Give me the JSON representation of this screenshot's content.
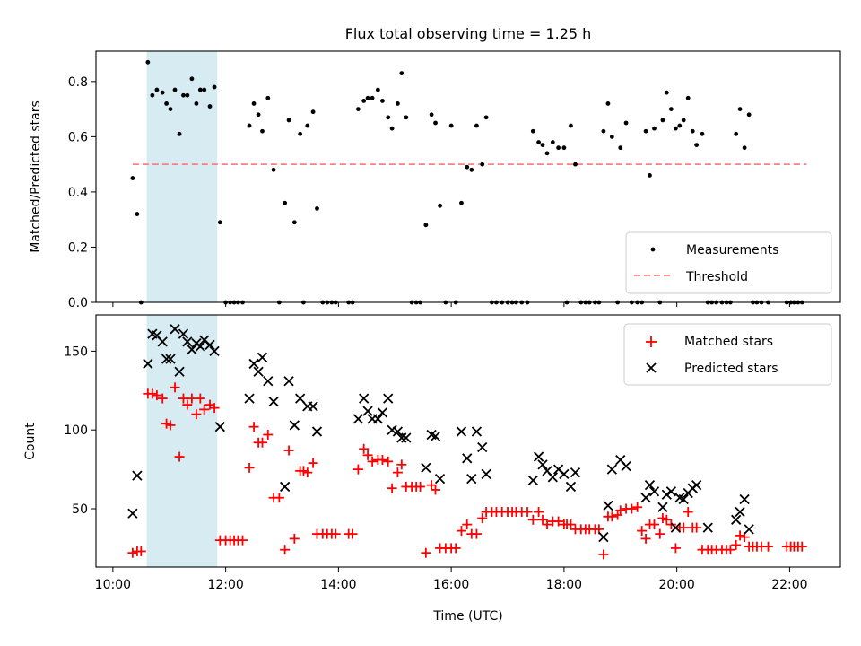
{
  "chart_data": {
    "title": "Flux total observing time = 1.25 h",
    "xlabel": "Time (UTC)",
    "x_unit": "hours UTC",
    "x_ticks": [
      10,
      12,
      14,
      16,
      18,
      20,
      22
    ],
    "x_tick_labels": [
      "10:00",
      "12:00",
      "14:00",
      "16:00",
      "18:00",
      "20:00",
      "22:00"
    ],
    "highlight": {
      "x_start": 10.6,
      "x_end": 11.85,
      "color": "#add8e6"
    },
    "top": {
      "type": "scatter",
      "ylabel": "Matched/Predicted stars",
      "ylim": [
        0,
        0.91
      ],
      "y_ticks": [
        0,
        0.2,
        0.4,
        0.6,
        0.8
      ],
      "y_tick_labels": [
        "0.0",
        "0.2",
        "0.4",
        "0.6",
        "0.8"
      ],
      "threshold": {
        "value": 0.5,
        "x_start": 10.35,
        "x_end": 22.3,
        "color": "#ff7f7f"
      },
      "legend": {
        "position": "lower-right",
        "items": [
          "Measurements",
          "Threshold"
        ]
      },
      "measurements": [
        [
          10.35,
          0.45
        ],
        [
          10.43,
          0.32
        ],
        [
          10.5,
          0
        ],
        [
          10.62,
          0.87
        ],
        [
          10.7,
          0.75
        ],
        [
          10.78,
          0.77
        ],
        [
          10.88,
          0.76
        ],
        [
          10.95,
          0.72
        ],
        [
          11.02,
          0.7
        ],
        [
          11.1,
          0.77
        ],
        [
          11.18,
          0.61
        ],
        [
          11.25,
          0.75
        ],
        [
          11.32,
          0.75
        ],
        [
          11.4,
          0.81
        ],
        [
          11.48,
          0.72
        ],
        [
          11.55,
          0.77
        ],
        [
          11.62,
          0.77
        ],
        [
          11.72,
          0.71
        ],
        [
          11.8,
          0.78
        ],
        [
          11.9,
          0.29
        ],
        [
          12.0,
          0
        ],
        [
          12.08,
          0
        ],
        [
          12.15,
          0
        ],
        [
          12.22,
          0
        ],
        [
          12.3,
          0
        ],
        [
          12.42,
          0.64
        ],
        [
          12.5,
          0.72
        ],
        [
          12.58,
          0.68
        ],
        [
          12.65,
          0.62
        ],
        [
          12.75,
          0.74
        ],
        [
          12.85,
          0.48
        ],
        [
          12.95,
          0
        ],
        [
          13.05,
          0.36
        ],
        [
          13.12,
          0.66
        ],
        [
          13.22,
          0.29
        ],
        [
          13.32,
          0.61
        ],
        [
          13.38,
          0
        ],
        [
          13.45,
          0.64
        ],
        [
          13.55,
          0.69
        ],
        [
          13.62,
          0.34
        ],
        [
          13.72,
          0
        ],
        [
          13.8,
          0
        ],
        [
          13.88,
          0
        ],
        [
          13.95,
          0
        ],
        [
          14.18,
          0
        ],
        [
          14.25,
          0
        ],
        [
          14.35,
          0.7
        ],
        [
          14.45,
          0.73
        ],
        [
          14.52,
          0.74
        ],
        [
          14.6,
          0.74
        ],
        [
          14.7,
          0.77
        ],
        [
          14.78,
          0.73
        ],
        [
          14.88,
          0.67
        ],
        [
          14.95,
          0.63
        ],
        [
          15.05,
          0.72
        ],
        [
          15.12,
          0.83
        ],
        [
          15.2,
          0.67
        ],
        [
          15.3,
          0
        ],
        [
          15.38,
          0
        ],
        [
          15.45,
          0
        ],
        [
          15.55,
          0.28
        ],
        [
          15.65,
          0.68
        ],
        [
          15.72,
          0.65
        ],
        [
          15.8,
          0.35
        ],
        [
          15.9,
          0
        ],
        [
          16.0,
          0.64
        ],
        [
          16.08,
          0
        ],
        [
          16.18,
          0.36
        ],
        [
          16.28,
          0.49
        ],
        [
          16.36,
          0.48
        ],
        [
          16.45,
          0.64
        ],
        [
          16.55,
          0.5
        ],
        [
          16.62,
          0.67
        ],
        [
          16.72,
          0
        ],
        [
          16.8,
          0
        ],
        [
          16.9,
          0
        ],
        [
          17.0,
          0
        ],
        [
          17.08,
          0
        ],
        [
          17.15,
          0
        ],
        [
          17.25,
          0
        ],
        [
          17.35,
          0
        ],
        [
          17.45,
          0.62
        ],
        [
          17.55,
          0.58
        ],
        [
          17.62,
          0.57
        ],
        [
          17.7,
          0.54
        ],
        [
          17.8,
          0.58
        ],
        [
          17.9,
          0.56
        ],
        [
          18.0,
          0.56
        ],
        [
          18.05,
          0
        ],
        [
          18.12,
          0.64
        ],
        [
          18.2,
          0.5
        ],
        [
          18.3,
          0
        ],
        [
          18.38,
          0
        ],
        [
          18.45,
          0
        ],
        [
          18.55,
          0
        ],
        [
          18.62,
          0
        ],
        [
          18.7,
          0.62
        ],
        [
          18.78,
          0.72
        ],
        [
          18.85,
          0.6
        ],
        [
          18.95,
          0
        ],
        [
          19.0,
          0.56
        ],
        [
          19.1,
          0.65
        ],
        [
          19.2,
          0
        ],
        [
          19.3,
          0
        ],
        [
          19.38,
          0
        ],
        [
          19.45,
          0.62
        ],
        [
          19.52,
          0.46
        ],
        [
          19.6,
          0.63
        ],
        [
          19.7,
          0
        ],
        [
          19.75,
          0.66
        ],
        [
          19.82,
          0.76
        ],
        [
          19.9,
          0.7
        ],
        [
          19.98,
          0.63
        ],
        [
          20.05,
          0.64
        ],
        [
          20.12,
          0.66
        ],
        [
          20.2,
          0.74
        ],
        [
          20.28,
          0.62
        ],
        [
          20.35,
          0.57
        ],
        [
          20.45,
          0.61
        ],
        [
          20.55,
          0
        ],
        [
          20.62,
          0
        ],
        [
          20.7,
          0
        ],
        [
          20.8,
          0
        ],
        [
          20.88,
          0
        ],
        [
          20.95,
          0
        ],
        [
          21.05,
          0.61
        ],
        [
          21.12,
          0.7
        ],
        [
          21.2,
          0.56
        ],
        [
          21.28,
          0.68
        ],
        [
          21.35,
          0
        ],
        [
          21.42,
          0
        ],
        [
          21.5,
          0
        ],
        [
          21.62,
          0
        ],
        [
          21.95,
          0
        ],
        [
          22.02,
          0
        ],
        [
          22.08,
          0
        ],
        [
          22.15,
          0
        ],
        [
          22.22,
          0
        ]
      ]
    },
    "bottom": {
      "type": "scatter",
      "ylabel": "Count",
      "ylim": [
        13,
        173
      ],
      "y_ticks": [
        50,
        100,
        150
      ],
      "y_tick_labels": [
        "50",
        "100",
        "150"
      ],
      "legend": {
        "position": "top-right",
        "items": [
          "Matched stars",
          "Predicted stars"
        ]
      },
      "matched": [
        [
          10.35,
          22
        ],
        [
          10.43,
          23
        ],
        [
          10.5,
          23
        ],
        [
          10.62,
          123
        ],
        [
          10.7,
          123
        ],
        [
          10.78,
          122
        ],
        [
          10.88,
          120
        ],
        [
          10.95,
          104
        ],
        [
          11.02,
          103
        ],
        [
          11.1,
          127
        ],
        [
          11.18,
          83
        ],
        [
          11.25,
          120
        ],
        [
          11.32,
          116
        ],
        [
          11.4,
          120
        ],
        [
          11.48,
          110
        ],
        [
          11.55,
          120
        ],
        [
          11.62,
          113
        ],
        [
          11.72,
          116
        ],
        [
          11.8,
          114
        ],
        [
          11.9,
          30
        ],
        [
          12.0,
          30
        ],
        [
          12.08,
          30
        ],
        [
          12.15,
          30
        ],
        [
          12.22,
          30
        ],
        [
          12.3,
          30
        ],
        [
          12.42,
          76
        ],
        [
          12.5,
          102
        ],
        [
          12.58,
          92
        ],
        [
          12.65,
          92
        ],
        [
          12.75,
          97
        ],
        [
          12.85,
          57
        ],
        [
          12.95,
          57
        ],
        [
          13.05,
          24
        ],
        [
          13.12,
          87
        ],
        [
          13.22,
          31
        ],
        [
          13.32,
          74
        ],
        [
          13.38,
          74
        ],
        [
          13.45,
          73
        ],
        [
          13.55,
          79
        ],
        [
          13.62,
          34
        ],
        [
          13.72,
          34
        ],
        [
          13.8,
          34
        ],
        [
          13.88,
          34
        ],
        [
          13.95,
          34
        ],
        [
          14.18,
          34
        ],
        [
          14.25,
          34
        ],
        [
          14.35,
          75
        ],
        [
          14.45,
          88
        ],
        [
          14.52,
          84
        ],
        [
          14.6,
          80
        ],
        [
          14.7,
          81
        ],
        [
          14.78,
          81
        ],
        [
          14.88,
          80
        ],
        [
          14.95,
          63
        ],
        [
          15.05,
          73
        ],
        [
          15.12,
          78
        ],
        [
          15.2,
          64
        ],
        [
          15.3,
          64
        ],
        [
          15.38,
          64
        ],
        [
          15.45,
          64
        ],
        [
          15.55,
          22
        ],
        [
          15.65,
          65
        ],
        [
          15.72,
          62
        ],
        [
          15.8,
          25
        ],
        [
          15.9,
          25
        ],
        [
          16.0,
          25
        ],
        [
          16.08,
          25
        ],
        [
          16.18,
          36
        ],
        [
          16.28,
          40
        ],
        [
          16.36,
          34
        ],
        [
          16.45,
          34
        ],
        [
          16.55,
          44
        ],
        [
          16.62,
          48
        ],
        [
          16.72,
          48
        ],
        [
          16.8,
          48
        ],
        [
          16.9,
          48
        ],
        [
          17.0,
          48
        ],
        [
          17.08,
          48
        ],
        [
          17.15,
          48
        ],
        [
          17.25,
          48
        ],
        [
          17.35,
          48
        ],
        [
          17.45,
          43
        ],
        [
          17.55,
          48
        ],
        [
          17.62,
          43
        ],
        [
          17.7,
          40
        ],
        [
          17.8,
          42
        ],
        [
          17.9,
          42
        ],
        [
          18.0,
          40
        ],
        [
          18.05,
          40
        ],
        [
          18.12,
          40
        ],
        [
          18.2,
          37
        ],
        [
          18.3,
          37
        ],
        [
          18.38,
          37
        ],
        [
          18.45,
          37
        ],
        [
          18.55,
          37
        ],
        [
          18.62,
          37
        ],
        [
          18.7,
          21
        ],
        [
          18.78,
          45
        ],
        [
          18.85,
          45
        ],
        [
          18.95,
          46
        ],
        [
          19.0,
          49
        ],
        [
          19.1,
          50
        ],
        [
          19.2,
          50
        ],
        [
          19.3,
          51
        ],
        [
          19.38,
          36
        ],
        [
          19.45,
          31
        ],
        [
          19.52,
          40
        ],
        [
          19.6,
          40
        ],
        [
          19.7,
          34
        ],
        [
          19.75,
          44
        ],
        [
          19.82,
          43
        ],
        [
          19.9,
          40
        ],
        [
          19.98,
          25
        ],
        [
          20.05,
          38
        ],
        [
          20.12,
          38
        ],
        [
          20.2,
          48
        ],
        [
          20.28,
          38
        ],
        [
          20.35,
          38
        ],
        [
          20.45,
          24
        ],
        [
          20.55,
          24
        ],
        [
          20.62,
          24
        ],
        [
          20.7,
          24
        ],
        [
          20.8,
          24
        ],
        [
          20.88,
          24
        ],
        [
          20.95,
          24
        ],
        [
          21.05,
          27
        ],
        [
          21.12,
          33
        ],
        [
          21.2,
          32
        ],
        [
          21.28,
          26
        ],
        [
          21.35,
          26
        ],
        [
          21.42,
          26
        ],
        [
          21.5,
          26
        ],
        [
          21.62,
          26
        ],
        [
          21.95,
          26
        ],
        [
          22.02,
          26
        ],
        [
          22.08,
          26
        ],
        [
          22.15,
          26
        ],
        [
          22.22,
          26
        ]
      ],
      "predicted": [
        [
          10.35,
          47
        ],
        [
          10.43,
          71
        ],
        [
          10.62,
          142
        ],
        [
          10.7,
          161
        ],
        [
          10.78,
          160
        ],
        [
          10.88,
          156
        ],
        [
          10.95,
          145
        ],
        [
          11.02,
          145
        ],
        [
          11.1,
          164
        ],
        [
          11.18,
          137
        ],
        [
          11.25,
          161
        ],
        [
          11.32,
          156
        ],
        [
          11.4,
          151
        ],
        [
          11.48,
          155
        ],
        [
          11.55,
          153
        ],
        [
          11.62,
          157
        ],
        [
          11.72,
          154
        ],
        [
          11.8,
          150
        ],
        [
          11.9,
          102
        ],
        [
          12.42,
          120
        ],
        [
          12.5,
          142
        ],
        [
          12.58,
          137
        ],
        [
          12.65,
          146
        ],
        [
          12.75,
          131
        ],
        [
          12.85,
          118
        ],
        [
          13.05,
          64
        ],
        [
          13.12,
          131
        ],
        [
          13.22,
          103
        ],
        [
          13.32,
          120
        ],
        [
          13.45,
          115
        ],
        [
          13.55,
          115
        ],
        [
          13.62,
          99
        ],
        [
          14.35,
          107
        ],
        [
          14.45,
          120
        ],
        [
          14.52,
          112
        ],
        [
          14.6,
          107
        ],
        [
          14.7,
          107
        ],
        [
          14.78,
          111
        ],
        [
          14.88,
          120
        ],
        [
          14.95,
          100
        ],
        [
          15.05,
          99
        ],
        [
          15.12,
          95
        ],
        [
          15.2,
          95
        ],
        [
          15.55,
          76
        ],
        [
          15.65,
          97
        ],
        [
          15.72,
          96
        ],
        [
          15.8,
          69
        ],
        [
          16.18,
          99
        ],
        [
          16.28,
          82
        ],
        [
          16.36,
          69
        ],
        [
          16.45,
          99
        ],
        [
          16.55,
          89
        ],
        [
          16.62,
          72
        ],
        [
          17.45,
          68
        ],
        [
          17.55,
          83
        ],
        [
          17.62,
          78
        ],
        [
          17.7,
          74
        ],
        [
          17.8,
          70
        ],
        [
          17.9,
          75
        ],
        [
          18.0,
          72
        ],
        [
          18.12,
          64
        ],
        [
          18.2,
          73
        ],
        [
          18.7,
          32
        ],
        [
          18.78,
          52
        ],
        [
          18.85,
          75
        ],
        [
          19.0,
          81
        ],
        [
          19.1,
          77
        ],
        [
          19.45,
          57
        ],
        [
          19.52,
          65
        ],
        [
          19.6,
          61
        ],
        [
          19.75,
          51
        ],
        [
          19.82,
          59
        ],
        [
          19.9,
          61
        ],
        [
          19.98,
          38
        ],
        [
          20.05,
          57
        ],
        [
          20.12,
          56
        ],
        [
          20.2,
          60
        ],
        [
          20.28,
          63
        ],
        [
          20.35,
          65
        ],
        [
          20.55,
          38
        ],
        [
          21.05,
          43
        ],
        [
          21.12,
          48
        ],
        [
          21.2,
          56
        ],
        [
          21.28,
          37
        ]
      ]
    }
  }
}
